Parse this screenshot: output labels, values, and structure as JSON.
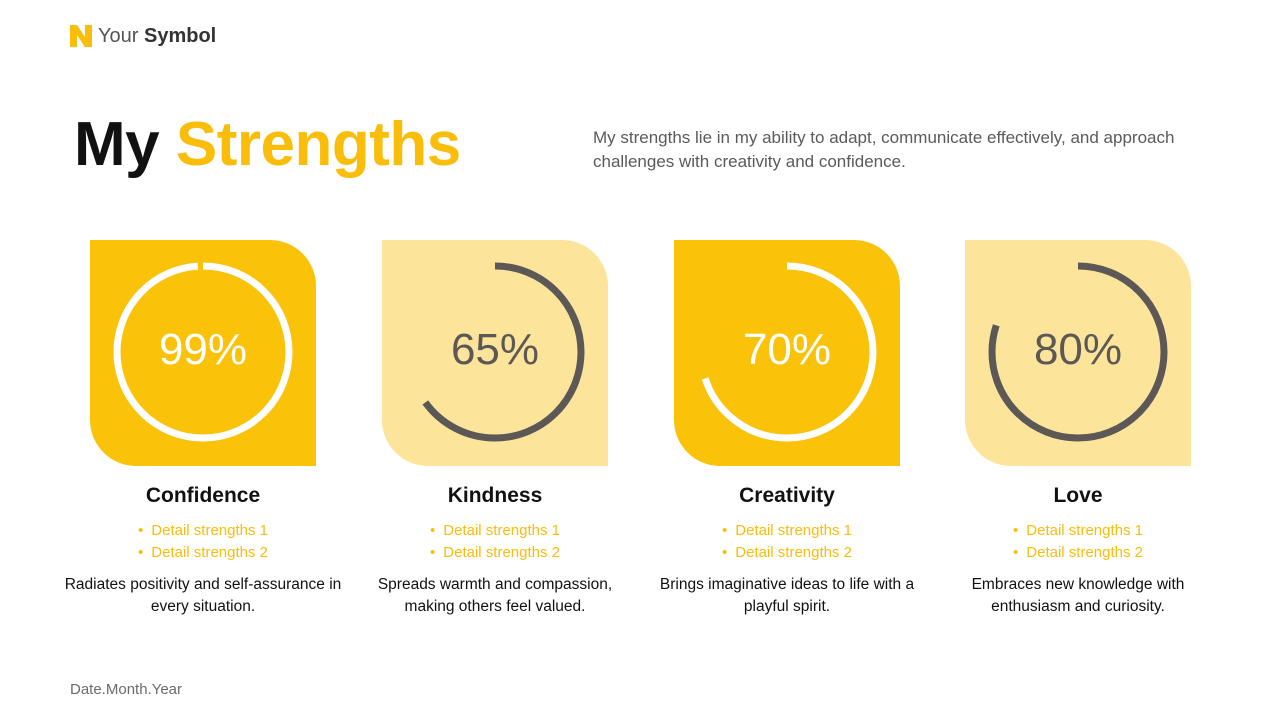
{
  "brand": {
    "prefix": "Your",
    "name": "Symbol",
    "color": "#F9BD0A"
  },
  "title": {
    "lead": "My",
    "accent": "Strengths"
  },
  "intro": "My strengths lie in my ability to adapt, communicate effectively, and approach challenges with creativity and confidence.",
  "colors": {
    "accent": "#F9BD0A",
    "dark_tile": "#FBC20A",
    "light_tile": "#FDE49B",
    "ring_dark": "#5B5856",
    "ring_light": "#FFFFFF"
  },
  "strengths": [
    {
      "percent": 99,
      "percent_label": "99%",
      "name": "Confidence",
      "bullets": [
        "Detail strengths 1",
        "Detail strengths 2"
      ],
      "description": "Radiates positivity and self-assurance in every situation.",
      "tile_style": "dark"
    },
    {
      "percent": 65,
      "percent_label": "65%",
      "name": "Kindness",
      "bullets": [
        "Detail strengths 1",
        "Detail strengths 2"
      ],
      "description": "Spreads warmth and compassion, making others feel valued.",
      "tile_style": "light"
    },
    {
      "percent": 70,
      "percent_label": "70%",
      "name": "Creativity",
      "bullets": [
        "Detail strengths 1",
        "Detail strengths 2"
      ],
      "description": "Brings imaginative ideas to life with a playful spirit.",
      "tile_style": "dark"
    },
    {
      "percent": 80,
      "percent_label": "80%",
      "name": "Love",
      "bullets": [
        "Detail strengths 1",
        "Detail strengths 2"
      ],
      "description": "Embraces new knowledge with enthusiasm and curiosity.",
      "tile_style": "light"
    }
  ],
  "footer": {
    "date": "Date.Month.Year"
  }
}
